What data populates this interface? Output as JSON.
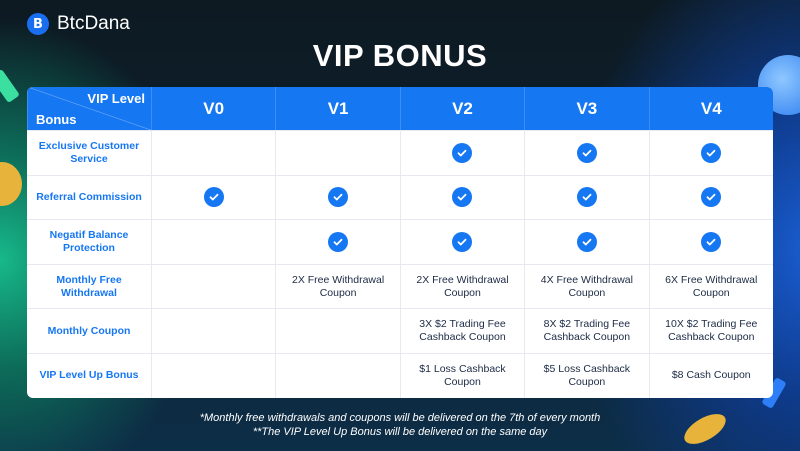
{
  "brand": {
    "name": "BtcDana",
    "mark": "B"
  },
  "title": "VIP BONUS",
  "table": {
    "corner_top": "VIP Level",
    "corner_bottom": "Bonus",
    "levels": [
      "V0",
      "V1",
      "V2",
      "V3",
      "V4"
    ],
    "rows": [
      {
        "label": "Exclusive Customer Service",
        "cells": [
          null,
          null,
          "check",
          "check",
          "check"
        ]
      },
      {
        "label": "Referral Commission",
        "cells": [
          "check",
          "check",
          "check",
          "check",
          "check"
        ]
      },
      {
        "label": "Negatif Balance Protection",
        "cells": [
          null,
          "check",
          "check",
          "check",
          "check"
        ]
      },
      {
        "label": "Monthly Free Withdrawal",
        "cells": [
          null,
          "2X Free Withdrawal Coupon",
          "2X Free Withdrawal Coupon",
          "4X Free Withdrawal Coupon",
          "6X Free Withdrawal Coupon"
        ]
      },
      {
        "label": "Monthly Coupon",
        "cells": [
          null,
          null,
          "3X  $2 Trading Fee Cashback Coupon",
          "8X  $2 Trading Fee Cashback Coupon",
          "10X  $2 Trading Fee Cashback Coupon"
        ]
      },
      {
        "label": "VIP Level Up Bonus",
        "cells": [
          null,
          null,
          "$1 Loss Cashback Coupon",
          "$5 Loss Cashback Coupon",
          "$8 Cash Coupon"
        ]
      }
    ]
  },
  "footnotes": [
    "*Monthly free withdrawals and coupons will be delivered on the 7th of every month",
    "**The VIP Level Up Bonus will be delivered on the same day"
  ],
  "colors": {
    "accent": "#1677f2",
    "label": "#1677f2",
    "text": "#1c2a44"
  }
}
